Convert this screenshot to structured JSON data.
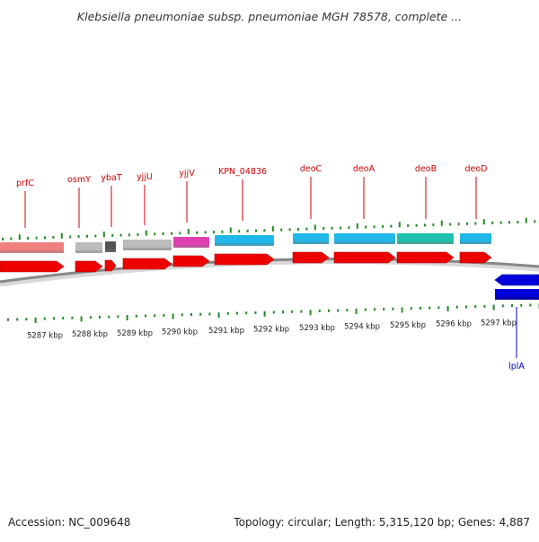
{
  "title": "Klebsiella pneumoniae subsp. pneumoniae MGH 78578, complete ...",
  "footer": {
    "accession": "Accession: NC_009648",
    "topology": "Topology: circular; Length: 5,315,120 bp; Genes: 4,887"
  },
  "colors": {
    "forward_label": "#cc0000",
    "reverse_label": "#0000cc",
    "forward_cds": "#ee0000",
    "reverse_cds": "#0000dd",
    "tick_green": "#228b22",
    "backbone": "#888888"
  },
  "scale_labels": [
    "5287 kbp",
    "5288 kbp",
    "5289 kbp",
    "5290 kbp",
    "5291 kbp",
    "5292 kbp",
    "5293 kbp",
    "5294 kbp",
    "5295 kbp",
    "5296 kbp",
    "5297 kbp"
  ],
  "genes": [
    {
      "name": "prfC",
      "strand": "forward",
      "color": "#f08080"
    },
    {
      "name": "osmY",
      "strand": "forward",
      "color": "#bbbbbb"
    },
    {
      "name": "ybaT",
      "strand": "forward",
      "color": "#555555"
    },
    {
      "name": "",
      "strand": "forward",
      "color": "#bbbbbb"
    },
    {
      "name": "yjjU",
      "strand": "forward",
      "color": "#bbbbbb"
    },
    {
      "name": "yjjV",
      "strand": "forward",
      "color": "#e040b0"
    },
    {
      "name": "KPN_04836",
      "strand": "forward",
      "color": "#20b8e8"
    },
    {
      "name": "deoC",
      "strand": "forward",
      "color": "#20b8e8"
    },
    {
      "name": "deoA",
      "strand": "forward",
      "color": "#20b8e8"
    },
    {
      "name": "deoB",
      "strand": "forward",
      "color": "#20c0b0"
    },
    {
      "name": "deoD",
      "strand": "forward",
      "color": "#20b8e8"
    },
    {
      "name": "lplA",
      "strand": "reverse",
      "color": "#0000dd"
    }
  ]
}
